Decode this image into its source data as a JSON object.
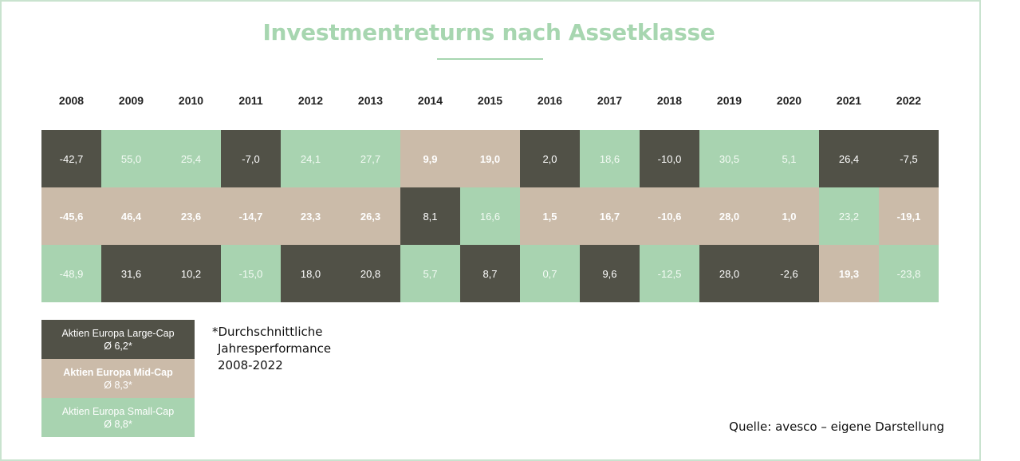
{
  "colors": {
    "large_cap": "#515147",
    "mid_cap": "#cbbba9",
    "small_cap": "#a8d3b0",
    "title": "#a7d6b0",
    "frame": "#c9e3cf"
  },
  "chart_data": {
    "type": "table",
    "title": "Investmentreturns nach Assetklasse",
    "columns": [
      "2008",
      "2009",
      "2010",
      "2011",
      "2012",
      "2013",
      "2014",
      "2015",
      "2016",
      "2017",
      "2018",
      "2019",
      "2020",
      "2021",
      "2022"
    ],
    "rows": [
      [
        {
          "v": "-42,7",
          "c": "large_cap"
        },
        {
          "v": "55,0",
          "c": "small_cap"
        },
        {
          "v": "25,4",
          "c": "small_cap"
        },
        {
          "v": "-7,0",
          "c": "large_cap"
        },
        {
          "v": "24,1",
          "c": "small_cap"
        },
        {
          "v": "27,7",
          "c": "small_cap"
        },
        {
          "v": "9,9",
          "c": "mid_cap"
        },
        {
          "v": "19,0",
          "c": "mid_cap"
        },
        {
          "v": "2,0",
          "c": "large_cap"
        },
        {
          "v": "18,6",
          "c": "small_cap"
        },
        {
          "v": "-10,0",
          "c": "large_cap"
        },
        {
          "v": "30,5",
          "c": "small_cap"
        },
        {
          "v": "5,1",
          "c": "small_cap"
        },
        {
          "v": "26,4",
          "c": "large_cap"
        },
        {
          "v": "-7,5",
          "c": "large_cap"
        }
      ],
      [
        {
          "v": "-45,6",
          "c": "mid_cap"
        },
        {
          "v": "46,4",
          "c": "mid_cap"
        },
        {
          "v": "23,6",
          "c": "mid_cap"
        },
        {
          "v": "-14,7",
          "c": "mid_cap"
        },
        {
          "v": "23,3",
          "c": "mid_cap"
        },
        {
          "v": "26,3",
          "c": "mid_cap"
        },
        {
          "v": "8,1",
          "c": "large_cap"
        },
        {
          "v": "16,6",
          "c": "small_cap"
        },
        {
          "v": "1,5",
          "c": "mid_cap"
        },
        {
          "v": "16,7",
          "c": "mid_cap"
        },
        {
          "v": "-10,6",
          "c": "mid_cap"
        },
        {
          "v": "28,0",
          "c": "mid_cap"
        },
        {
          "v": "1,0",
          "c": "mid_cap"
        },
        {
          "v": "23,2",
          "c": "small_cap"
        },
        {
          "v": "-19,1",
          "c": "mid_cap"
        }
      ],
      [
        {
          "v": "-48,9",
          "c": "small_cap"
        },
        {
          "v": "31,6",
          "c": "large_cap"
        },
        {
          "v": "10,2",
          "c": "large_cap"
        },
        {
          "v": "-15,0",
          "c": "small_cap"
        },
        {
          "v": "18,0",
          "c": "large_cap"
        },
        {
          "v": "20,8",
          "c": "large_cap"
        },
        {
          "v": "5,7",
          "c": "small_cap"
        },
        {
          "v": "8,7",
          "c": "large_cap"
        },
        {
          "v": "0,7",
          "c": "small_cap"
        },
        {
          "v": "9,6",
          "c": "large_cap"
        },
        {
          "v": "-12,5",
          "c": "small_cap"
        },
        {
          "v": "28,0",
          "c": "large_cap"
        },
        {
          "v": "-2,6",
          "c": "large_cap"
        },
        {
          "v": "19,3",
          "c": "mid_cap"
        },
        {
          "v": "-23,8",
          "c": "small_cap"
        }
      ]
    ]
  },
  "legend": [
    {
      "key": "large_cap",
      "label": "Aktien Europa Large-Cap",
      "avg": "Ø 6,2*"
    },
    {
      "key": "mid_cap",
      "label": "Aktien Europa Mid-Cap",
      "avg": "Ø 8,3*"
    },
    {
      "key": "small_cap",
      "label": "Aktien Europa Small-Cap",
      "avg": "Ø 8,8*"
    }
  ],
  "note": {
    "line1": "*Durchschnittliche",
    "line2": "Jahresperformance",
    "line3": "2008-2022"
  },
  "source": "Quelle: avesco – eigene Darstellung"
}
